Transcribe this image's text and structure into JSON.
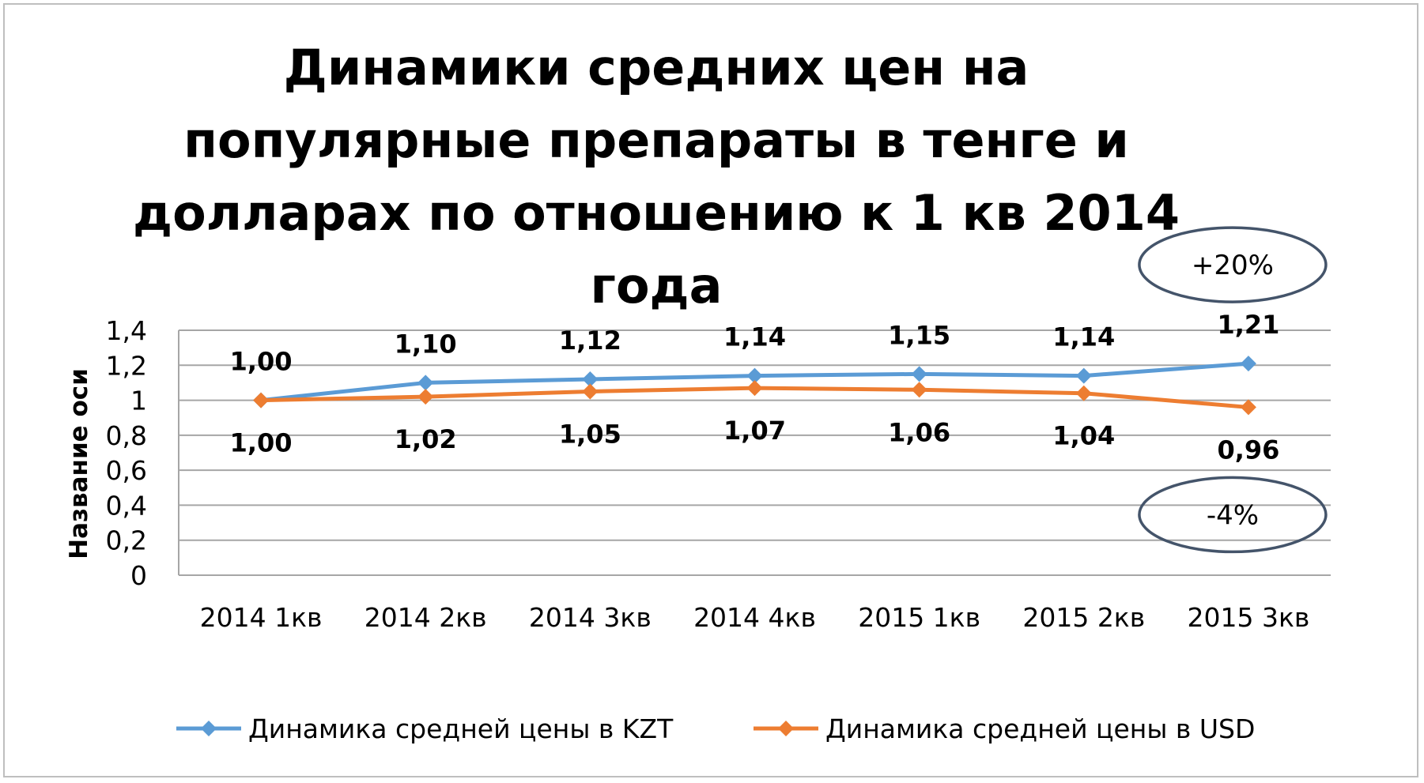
{
  "chart_data": {
    "type": "line",
    "title": "Динамики средних цен на популярные препараты в тенге и долларах по отношению к 1 кв 2014 года",
    "ylabel": "Название оси",
    "xlabel": "",
    "categories": [
      "2014 1кв",
      "2014 2кв",
      "2014 3кв",
      "2014 4кв",
      "2015 1кв",
      "2015 2кв",
      "2015 3кв"
    ],
    "ylim": [
      0,
      1.4
    ],
    "yticks": [
      0,
      0.2,
      0.4,
      0.6,
      0.8,
      1,
      1.2,
      1.4
    ],
    "ytick_labels": [
      "0",
      "0,2",
      "0,4",
      "0,6",
      "0,8",
      "1",
      "1,2",
      "1,4"
    ],
    "grid": true,
    "legend_position": "bottom",
    "series": [
      {
        "name": "Динамика средней цены в KZT",
        "color": "#5b9bd5",
        "values": [
          1.0,
          1.1,
          1.12,
          1.14,
          1.15,
          1.14,
          1.21
        ],
        "labels": [
          "1,00",
          "1,10",
          "1,12",
          "1,14",
          "1,15",
          "1,14",
          "1,21"
        ],
        "label_position": "above"
      },
      {
        "name": "Динамика средней цены в USD",
        "color": "#ed7d31",
        "values": [
          1.0,
          1.02,
          1.05,
          1.07,
          1.06,
          1.04,
          0.96
        ],
        "labels": [
          "1,00",
          "1,02",
          "1,05",
          "1,07",
          "1,06",
          "1,04",
          "0,96"
        ],
        "label_position": "below"
      }
    ],
    "annotations": [
      {
        "text": "+20%",
        "series": "Динамика средней цены в KZT",
        "position": "above-last-point"
      },
      {
        "text": "-4%",
        "series": "Динамика средней цены в USD",
        "position": "below-last-point"
      }
    ]
  }
}
